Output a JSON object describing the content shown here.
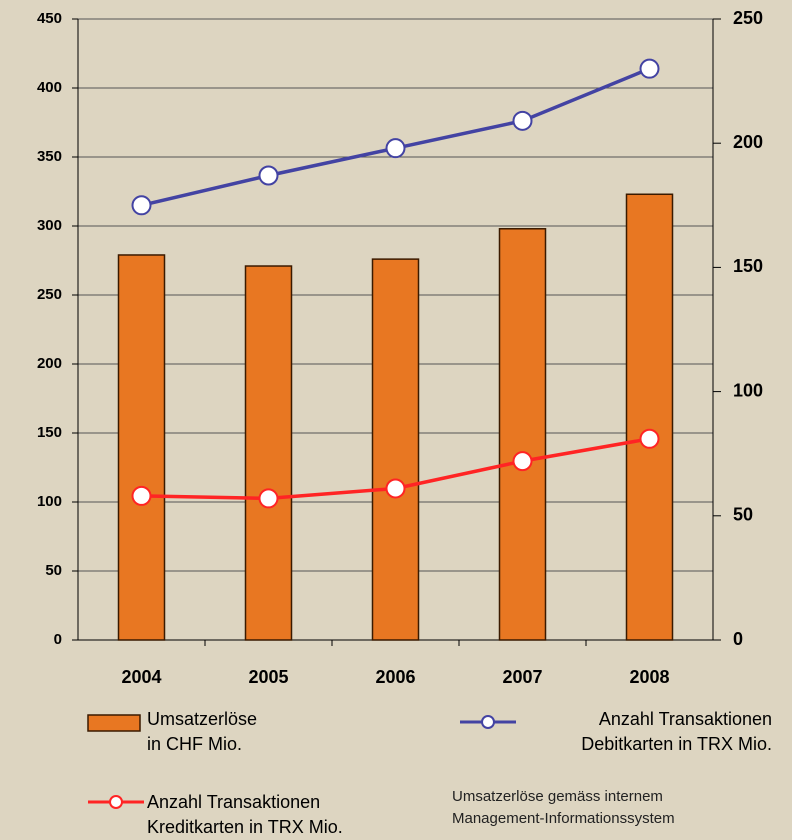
{
  "chart_data": {
    "type": "bar_line_combo",
    "categories": [
      "2004",
      "2005",
      "2006",
      "2007",
      "2008"
    ],
    "series": [
      {
        "name": "Umsatzerlöse\nin CHF Mio.",
        "type": "bar",
        "color": "#e87722",
        "axis": "y",
        "values": [
          279,
          271,
          276,
          298,
          323
        ]
      },
      {
        "name": "Anzahl Transaktionen\nDebitkarten in TRX Mio.",
        "type": "line",
        "color": "#4343a3",
        "axis": "y2",
        "values": [
          175,
          187,
          198,
          209,
          230
        ]
      },
      {
        "name": "Anzahl Transaktionen\nKreditkarten in TRX Mio.",
        "type": "line",
        "color": "#ff2424",
        "axis": "y2",
        "values": [
          58,
          57,
          61,
          72,
          81
        ]
      }
    ],
    "ylim": [
      0,
      450
    ],
    "yticks": [
      0,
      50,
      100,
      150,
      200,
      250,
      300,
      350,
      400,
      450
    ],
    "y2lim": [
      0,
      250
    ],
    "y2ticks": [
      0,
      50,
      100,
      150,
      200,
      250
    ],
    "grid": true,
    "annotation": "Umsatzerlöse gemäss internem\nManagement-Informationssystem"
  }
}
